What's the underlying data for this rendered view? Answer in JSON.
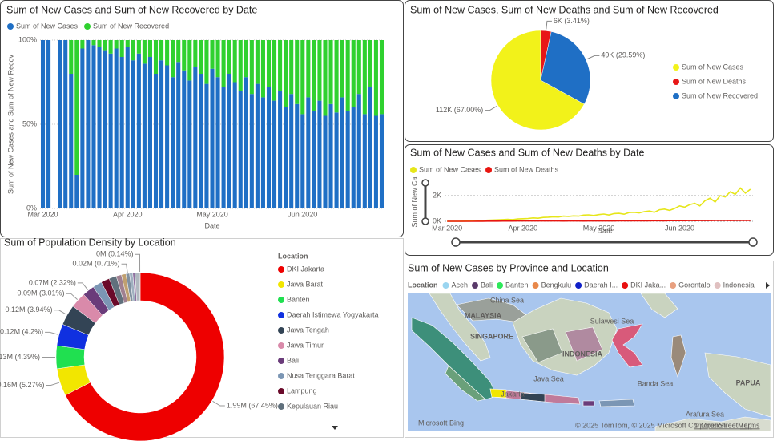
{
  "chart_data": [
    {
      "type": "bar",
      "stacked": "percent",
      "title": "Sum of New Cases and Sum of New Recovered by Date",
      "xlabel": "Date",
      "ylabel": "Sum of New Cases and Sum of New Recov",
      "categories": [
        "Mar 2020",
        null,
        null,
        null,
        null,
        null,
        null,
        null,
        null,
        null,
        null,
        null,
        null,
        null,
        null,
        "Apr 2020",
        null,
        null,
        null,
        null,
        null,
        null,
        null,
        null,
        null,
        null,
        null,
        null,
        null,
        null,
        "May 2020",
        null,
        null,
        null,
        null,
        null,
        null,
        null,
        null,
        null,
        null,
        null,
        null,
        null,
        null,
        null,
        "Jun 2020",
        null,
        null,
        null,
        null,
        null,
        null,
        null,
        null,
        null,
        null,
        null,
        null,
        null,
        null
      ],
      "series": [
        {
          "name": "Sum of New Cases",
          "color": "#1f6fc5",
          "values": [
            100,
            100,
            null,
            100,
            100,
            80,
            20,
            95,
            100,
            97,
            96,
            94,
            92,
            95,
            90,
            96,
            88,
            92,
            86,
            90,
            80,
            88,
            85,
            78,
            87,
            82,
            76,
            84,
            80,
            74,
            83,
            78,
            72,
            80,
            75,
            70,
            78,
            68,
            74,
            66,
            72,
            64,
            70,
            60,
            68,
            62,
            56,
            66,
            58,
            64,
            55,
            62,
            57,
            66,
            58,
            60,
            68,
            56,
            72,
            55,
            56
          ]
        },
        {
          "name": "Sum of New Recovered",
          "color": "#2fd12f",
          "values": [
            0,
            0,
            null,
            0,
            0,
            20,
            80,
            5,
            0,
            3,
            4,
            6,
            8,
            5,
            10,
            4,
            12,
            8,
            14,
            10,
            20,
            12,
            15,
            22,
            13,
            18,
            24,
            16,
            20,
            26,
            17,
            22,
            28,
            20,
            25,
            30,
            22,
            32,
            26,
            34,
            28,
            36,
            30,
            40,
            32,
            38,
            44,
            34,
            42,
            36,
            45,
            38,
            43,
            34,
            42,
            40,
            32,
            44,
            28,
            45,
            44
          ]
        }
      ],
      "ylim": [
        0,
        100
      ],
      "yticks": [
        {
          "value": 0,
          "label": "0%"
        },
        {
          "value": 50,
          "label": "50%"
        },
        {
          "value": 100,
          "label": "100%"
        }
      ],
      "grid": true
    },
    {
      "type": "pie",
      "title": "Sum of New Cases, Sum of New Deaths and Sum of New Recovered",
      "categories": [
        "Sum of New Cases",
        "Sum of New Deaths",
        "Sum of New Recovered"
      ],
      "values": [
        111900,
        5700,
        49420
      ],
      "value_labels": [
        "112K (67.00%)",
        "6K (3.41%)",
        "49K (29.59%)"
      ],
      "colors": [
        "#f2f21a",
        "#e81717",
        "#1f6fc5"
      ]
    },
    {
      "type": "line",
      "title": "Sum of New Cases and Sum of New Deaths by Date",
      "xlabel": "Date",
      "ylabel": "Sum of New Ca",
      "categories": [
        "Mar 2020",
        null,
        null,
        null,
        null,
        null,
        null,
        null,
        null,
        null,
        null,
        null,
        null,
        null,
        null,
        "Apr 2020",
        null,
        null,
        null,
        null,
        null,
        null,
        null,
        null,
        null,
        null,
        null,
        null,
        null,
        null,
        "May 2020",
        null,
        null,
        null,
        null,
        null,
        null,
        null,
        null,
        null,
        null,
        null,
        null,
        null,
        null,
        null,
        "Jun 2020",
        null,
        null,
        null,
        null,
        null,
        null,
        null,
        null,
        null,
        null,
        null,
        null,
        null,
        null
      ],
      "series": [
        {
          "name": "Sum of New Cases",
          "color": "#e6e61a",
          "values": [
            0,
            2,
            2,
            5,
            10,
            20,
            40,
            60,
            80,
            100,
            110,
            130,
            150,
            130,
            180,
            200,
            220,
            260,
            240,
            300,
            320,
            350,
            330,
            400,
            380,
            420,
            400,
            480,
            500,
            450,
            520,
            560,
            490,
            600,
            620,
            550,
            680,
            700,
            650,
            750,
            800,
            700,
            900,
            950,
            850,
            1000,
            1200,
            1100,
            1300,
            1400,
            1200,
            1600,
            1800,
            1500,
            2000,
            1900,
            2300,
            2100,
            2600,
            2200,
            2500
          ]
        },
        {
          "name": "Sum of New Deaths",
          "color": "#e8150f",
          "values": [
            0,
            0,
            0,
            1,
            2,
            3,
            5,
            8,
            10,
            12,
            14,
            16,
            18,
            20,
            22,
            25,
            24,
            26,
            28,
            30,
            27,
            25,
            22,
            20,
            24,
            26,
            23,
            21,
            25,
            27,
            24,
            22,
            26,
            28,
            30,
            32,
            35,
            30,
            38,
            40,
            36,
            42,
            45,
            40,
            48,
            50,
            55,
            45,
            60,
            52,
            58,
            62,
            55,
            65,
            60,
            70,
            58,
            68,
            75,
            62,
            66
          ]
        }
      ],
      "ylim": [
        0,
        3000
      ],
      "yticks": [
        {
          "value": 0,
          "label": "0K"
        },
        {
          "value": 2000,
          "label": "2K"
        }
      ],
      "grid": true
    },
    {
      "type": "donut",
      "title": "Sum of Population Density by Location",
      "legend_title": "Location",
      "categories": [
        "DKI Jakarta",
        "Jawa Barat",
        "Banten",
        "Daerah Istimewa Yogyakarta",
        "Jawa Tengah",
        "Jawa Timur",
        "Bali",
        "Nusa Tenggara Barat",
        "Lampung",
        "Kepulauan Riau",
        null,
        null,
        null,
        null,
        null,
        null,
        null
      ],
      "values": [
        1990000,
        155500,
        129500,
        123900,
        116200,
        88800,
        68400,
        52000,
        48000,
        42000,
        30000,
        25000,
        20900,
        18000,
        12700,
        25000,
        4100
      ],
      "value_labels": [
        "1.99M (67.45%)",
        "0.16M (5.27%)",
        "0.13M (4.39%)",
        "0.12M (4.2%)",
        "0.12M (3.94%)",
        "0.09M (3.01%)",
        "0.07M (2.32%)",
        null,
        null,
        null,
        null,
        null,
        "0.02M (0.71%)",
        null,
        null,
        null,
        "0M (0.14%)"
      ],
      "colors": [
        "#ee0000",
        "#f2e600",
        "#20e050",
        "#1030e0",
        "#334455",
        "#d98aaa",
        "#6a3c7a",
        "#7b96b4",
        "#6a0a2a",
        "#60707c",
        "#a08090",
        "#c0a070",
        "#8090a0",
        "#a0b0c0",
        "#9070a0",
        "#b0b8c0",
        "#707880"
      ]
    },
    {
      "type": "map",
      "title": "Sum of New Cases by Province and Location",
      "legend_title": "Location",
      "categories": [
        "Aceh",
        "Bali",
        "Banten",
        "Bengkulu",
        "Daerah I...",
        "DKI Jaka...",
        "Gorontalo",
        "Indonesia"
      ],
      "colors": [
        "#9ad5f0",
        "#5a3a6a",
        "#2ee85a",
        "#e8884a",
        "#1020c8",
        "#e81010",
        "#e8a080",
        "#e0c0c0"
      ],
      "labels": [
        "China Sea",
        "MALAYSIA",
        "SINGAPORE",
        "INDONESIA",
        "Sulawesi Sea",
        "Java Sea",
        "Banda Sea",
        "Arafura Sea",
        "Jakarta",
        "PAPUA"
      ],
      "attribution": [
        "Microsoft Bing",
        "© 2025 TomTom, © 2025 Microsoft Corporation",
        "© OpenStreetMap",
        "Terms"
      ]
    }
  ]
}
